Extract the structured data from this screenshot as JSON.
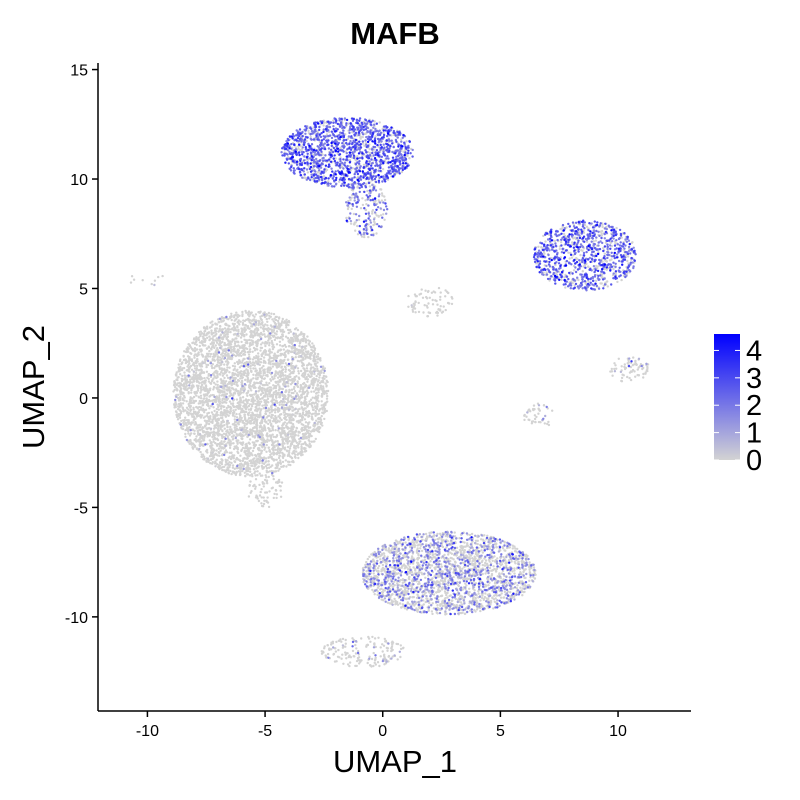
{
  "chart_data": {
    "type": "scatter",
    "title": "MAFB",
    "xlabel": "UMAP_1",
    "ylabel": "UMAP_2",
    "xlim": [
      -12.1,
      13.1
    ],
    "ylim": [
      -14.3,
      15.3
    ],
    "x_ticks": [
      -10,
      -5,
      0,
      5,
      10
    ],
    "y_ticks": [
      -10,
      -5,
      0,
      5,
      10,
      15
    ],
    "grid": false,
    "legend": {
      "placement": "right",
      "type": "colorbar",
      "ticks": [
        0,
        1,
        2,
        3,
        4
      ],
      "min": 0,
      "max": 4.6,
      "color_low": "#d3d3d3",
      "color_high": "#0000ff"
    },
    "clusters": [
      {
        "name": "top",
        "cx": -1.5,
        "cy": 11.2,
        "rx": 2.8,
        "ry": 1.6,
        "mean_expr": 1.6,
        "density": 1.0
      },
      {
        "name": "top-stem",
        "cx": -0.7,
        "cy": 8.6,
        "rx": 0.9,
        "ry": 1.3,
        "mean_expr": 1.1,
        "density": 0.5
      },
      {
        "name": "right-upper",
        "cx": 8.6,
        "cy": 6.5,
        "rx": 2.2,
        "ry": 1.6,
        "mean_expr": 1.5,
        "density": 0.8
      },
      {
        "name": "right-mid",
        "cx": 10.5,
        "cy": 1.3,
        "rx": 0.9,
        "ry": 0.6,
        "mean_expr": 0.3,
        "density": 0.4
      },
      {
        "name": "right-small",
        "cx": 6.6,
        "cy": -0.8,
        "rx": 0.7,
        "ry": 0.6,
        "mean_expr": 0.4,
        "density": 0.3
      },
      {
        "name": "center-small",
        "cx": 2.0,
        "cy": 4.4,
        "rx": 1.0,
        "ry": 0.7,
        "mean_expr": 0.1,
        "density": 0.3
      },
      {
        "name": "left-large",
        "cx": -5.6,
        "cy": 0.2,
        "rx": 3.3,
        "ry": 3.8,
        "mean_expr": 0.05,
        "density": 1.0
      },
      {
        "name": "bottom-large",
        "cx": 2.8,
        "cy": -8.0,
        "rx": 3.7,
        "ry": 1.9,
        "mean_expr": 0.7,
        "density": 1.0
      },
      {
        "name": "bottom-tail",
        "cx": -0.8,
        "cy": -11.6,
        "rx": 1.8,
        "ry": 0.7,
        "mean_expr": 0.3,
        "density": 0.4
      },
      {
        "name": "left-stub",
        "cx": -5.0,
        "cy": -4.2,
        "rx": 0.8,
        "ry": 0.8,
        "mean_expr": 0.05,
        "density": 0.3
      },
      {
        "name": "far-left-strip",
        "cx": -9.9,
        "cy": 5.4,
        "rx": 1.0,
        "ry": 0.25,
        "mean_expr": 0.1,
        "density": 0.1
      }
    ]
  }
}
